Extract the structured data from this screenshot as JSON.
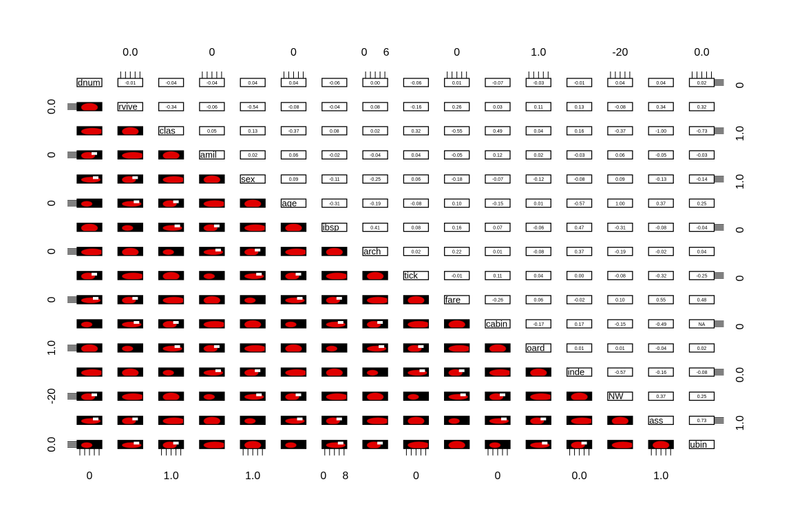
{
  "matrix": {
    "variables": [
      "dnum",
      "rvive",
      "clas",
      "amil",
      "sex",
      "age",
      "ibsp",
      "arch",
      "tick",
      "fare",
      "cabin",
      "oard",
      "inde",
      "NW",
      "ass",
      "ubin"
    ],
    "correlations": [
      [
        "-0.01",
        "-0.04",
        "-0.04",
        "0.04",
        "0.04",
        "-0.06",
        "0.00",
        "-0.06",
        "0.01",
        "-0.07",
        "-0.03",
        "-0.01",
        "0.04",
        "0.04",
        "0.02"
      ],
      [
        "-0.34",
        "-0.06",
        "-0.54",
        "-0.08",
        "-0.04",
        "0.08",
        "-0.16",
        "0.26",
        "0.03",
        "0.11",
        "0.13",
        "-0.08",
        "0.34",
        "0.32"
      ],
      [
        "0.05",
        "0.13",
        "-0.37",
        "0.08",
        "0.02",
        "0.32",
        "-0.55",
        "0.49",
        "0.04",
        "0.16",
        "-0.37",
        "-1.00",
        "-0.73"
      ],
      [
        "0.02",
        "0.06",
        "-0.02",
        "-0.04",
        "0.04",
        "-0.05",
        "0.12",
        "0.02",
        "-0.03",
        "0.06",
        "-0.05",
        "-0.03"
      ],
      [
        "0.09",
        "-0.11",
        "-0.25",
        "0.06",
        "-0.18",
        "-0.07",
        "-0.12",
        "-0.08",
        "0.09",
        "-0.13",
        "-0.14"
      ],
      [
        "-0.31",
        "-0.19",
        "-0.08",
        "0.10",
        "-0.15",
        "0.01",
        "-0.57",
        "1.00",
        "0.37",
        "0.25"
      ],
      [
        "0.41",
        "0.08",
        "0.16",
        "0.07",
        "-0.06",
        "0.47",
        "-0.31",
        "-0.08",
        "-0.04"
      ],
      [
        "0.02",
        "0.22",
        "0.01",
        "-0.08",
        "0.37",
        "-0.19",
        "-0.02",
        "0.04"
      ],
      [
        "-0.01",
        "0.11",
        "0.04",
        "0.00",
        "-0.08",
        "-0.32",
        "-0.25"
      ],
      [
        "-0.26",
        "0.06",
        "-0.02",
        "0.10",
        "0.55",
        "0.48"
      ],
      [
        "-0.17",
        "0.17",
        "-0.15",
        "-0.49",
        "NA"
      ],
      [
        "0.01",
        "0.01",
        "-0.04",
        "0.02"
      ],
      [
        "-0.57",
        "-0.16",
        "-0.08"
      ],
      [
        "0.37",
        "0.25"
      ],
      [
        "0.73"
      ]
    ],
    "top_axis": [
      [
        "0.0"
      ],
      [
        "0"
      ],
      [
        "0"
      ],
      [
        "0",
        "6"
      ],
      [
        "0"
      ],
      [
        "1.0"
      ],
      [
        "-20"
      ],
      [
        "0.0"
      ]
    ],
    "bottom_axis": [
      [
        "0"
      ],
      [
        "1.0"
      ],
      [
        "1.0"
      ],
      [
        "0",
        "8"
      ],
      [
        "0"
      ],
      [
        "0"
      ],
      [
        "0.0"
      ],
      [
        "1.0"
      ]
    ],
    "left_axis": [
      [
        "0.0"
      ],
      [
        "0"
      ],
      [
        "0"
      ],
      [
        "0"
      ],
      [
        "0"
      ],
      [
        "1.0"
      ],
      [
        "-20"
      ],
      [
        "0.0"
      ]
    ],
    "right_axis": [
      [
        "0"
      ],
      [
        "1.0"
      ],
      [
        "1.0"
      ],
      [
        "0"
      ],
      [
        "0"
      ],
      [
        "0"
      ],
      [
        "0.0"
      ],
      [
        "1.0"
      ]
    ]
  }
}
